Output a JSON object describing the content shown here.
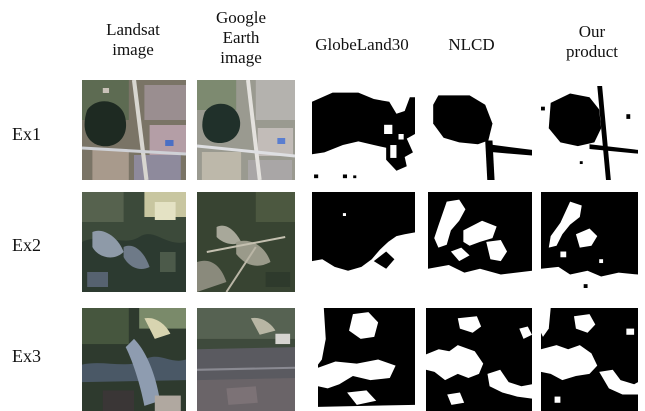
{
  "columns": [
    {
      "label": "Landsat\nimage"
    },
    {
      "label": "Google\nEarth\nimage"
    },
    {
      "label": "GlobeLand30"
    },
    {
      "label": "NLCD"
    },
    {
      "label": "Our\nproduct"
    }
  ],
  "rows": [
    {
      "label": "Ex1"
    },
    {
      "label": "Ex2"
    },
    {
      "label": "Ex3"
    }
  ]
}
